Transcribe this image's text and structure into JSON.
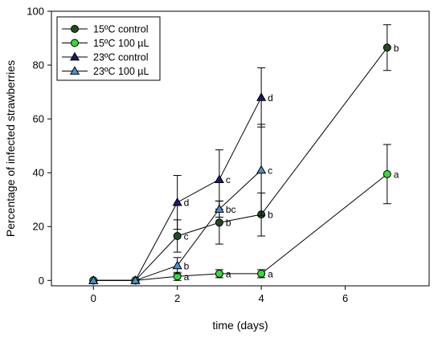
{
  "chart_data": {
    "type": "line",
    "xlabel": "time (days)",
    "ylabel": "Percentage of infected strawberries",
    "xlim": [
      -1,
      8
    ],
    "ylim": [
      -2,
      100
    ],
    "x_ticks": [
      0,
      2,
      4,
      6
    ],
    "y_ticks": [
      0,
      20,
      40,
      60,
      80,
      100
    ],
    "grid": false,
    "legend_position": "top-left",
    "series": [
      {
        "name": "15ºC control",
        "marker": "circle",
        "color": "#1f4d1f",
        "x": [
          0,
          1,
          2,
          3,
          4,
          7
        ],
        "y": [
          0,
          0,
          16.5,
          21.5,
          24.5,
          86.5
        ],
        "err": [
          0,
          0,
          6,
          8,
          8,
          8.5
        ],
        "labels": [
          "",
          "",
          "c",
          "b",
          "b",
          "b"
        ]
      },
      {
        "name": "15ºC 100 µL",
        "marker": "circle",
        "color": "#33dd33",
        "x": [
          0,
          1,
          2,
          3,
          4,
          7
        ],
        "y": [
          0,
          0,
          1.5,
          2.5,
          2.5,
          39.5
        ],
        "err": [
          0,
          0,
          1.5,
          1.5,
          1.5,
          11
        ],
        "labels": [
          "",
          "",
          "a",
          "a",
          "a",
          "a"
        ]
      },
      {
        "name": "23ºC control",
        "marker": "triangle",
        "color": "#1a1a6e",
        "x": [
          0,
          1,
          2,
          3,
          4
        ],
        "y": [
          0,
          0,
          29,
          37.5,
          68
        ],
        "err": [
          0,
          0,
          10,
          11,
          11
        ],
        "labels": [
          "",
          "",
          "d",
          "c",
          "d"
        ]
      },
      {
        "name": "23ºC 100 µL",
        "marker": "triangle",
        "color": "#4a8fd4",
        "x": [
          0,
          1,
          2,
          3,
          4
        ],
        "y": [
          0,
          0,
          5.5,
          26.5,
          41
        ],
        "err": [
          0,
          0,
          3,
          3,
          17
        ],
        "labels": [
          "",
          "",
          "b",
          "bc",
          "c"
        ]
      }
    ]
  }
}
